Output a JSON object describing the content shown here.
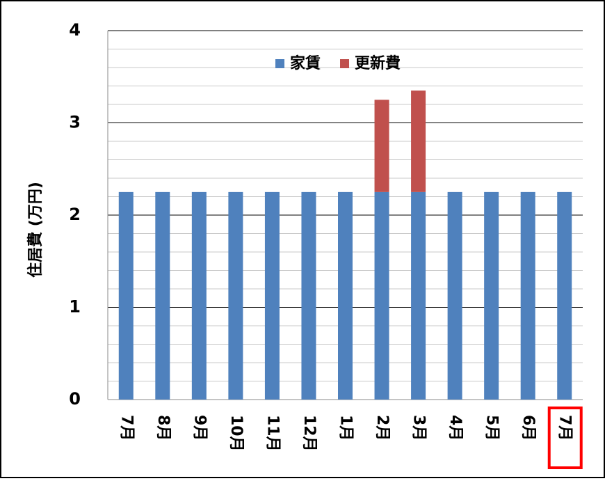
{
  "chart_data": {
    "type": "stacked_bar",
    "y_label": "住居費 (万円)",
    "categories": [
      "7月",
      "8月",
      "9月",
      "10月",
      "11月",
      "12月",
      "1月",
      "2月",
      "3月",
      "4月",
      "5月",
      "6月",
      "7月"
    ],
    "series": [
      {
        "name": "家賃",
        "color": "#4f81bd",
        "values": [
          2.25,
          2.25,
          2.25,
          2.25,
          2.25,
          2.25,
          2.25,
          2.25,
          2.25,
          2.25,
          2.25,
          2.25,
          2.25
        ]
      },
      {
        "name": "更新費",
        "color": "#c0504d",
        "values": [
          null,
          null,
          null,
          null,
          null,
          null,
          null,
          1.0,
          1.1,
          null,
          null,
          null,
          null
        ]
      }
    ],
    "ylim": [
      0,
      4
    ],
    "yticks": [
      0,
      1,
      2,
      3,
      4
    ],
    "minor_yticks": [
      0.2,
      0.4,
      0.6,
      0.8,
      1.2,
      1.4,
      1.6,
      1.8,
      2.2,
      2.4,
      2.6,
      2.8,
      3.2,
      3.4,
      3.6,
      3.8
    ],
    "grid": true,
    "legend": "top"
  }
}
